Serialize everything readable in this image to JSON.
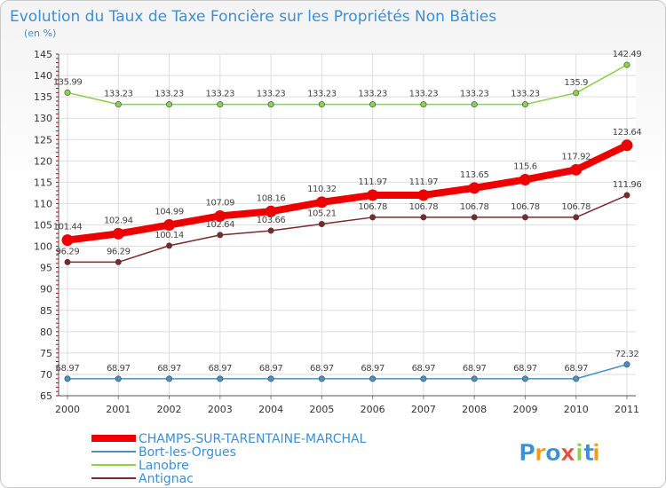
{
  "chart_data": {
    "type": "line",
    "title": "Evolution du Taux de Taxe Foncière sur les Propriétés Non Bâties",
    "subtitle": "(en %)",
    "xlabel": "",
    "ylabel": "",
    "x": [
      "2000",
      "2001",
      "2002",
      "2003",
      "2004",
      "2005",
      "2006",
      "2007",
      "2008",
      "2009",
      "2010",
      "2011"
    ],
    "ylim": [
      65,
      145
    ],
    "yticks": [
      65,
      70,
      75,
      80,
      85,
      90,
      95,
      100,
      105,
      110,
      115,
      120,
      125,
      130,
      135,
      140,
      145
    ],
    "grid": true,
    "legend_position": "bottom-left",
    "series": [
      {
        "name": "Lanobre",
        "color": "#8cd14a",
        "values": [
          135.99,
          133.23,
          133.23,
          133.23,
          133.23,
          133.23,
          133.23,
          133.23,
          133.23,
          133.23,
          135.9,
          142.49
        ],
        "labels": [
          "135.99",
          "133.23",
          "133.23",
          "133.23",
          "133.23",
          "133.23",
          "133.23",
          "133.23",
          "133.23",
          "133.23",
          "135.9",
          "142.49"
        ]
      },
      {
        "name": "CHAMPS-SUR-TARENTAINE-MARCHAL",
        "color": "#ee0000",
        "values": [
          101.44,
          102.94,
          104.99,
          107.09,
          108.16,
          110.32,
          111.97,
          111.97,
          113.65,
          115.6,
          117.92,
          123.64
        ],
        "labels": [
          "101.44",
          "102.94",
          "104.99",
          "107.09",
          "108.16",
          "110.32",
          "111.97",
          "111.97",
          "113.65",
          "115.6",
          "117.92",
          "123.64"
        ]
      },
      {
        "name": "Antignac",
        "color": "#7a2a2a",
        "values": [
          96.29,
          96.29,
          100.14,
          102.64,
          103.66,
          105.21,
          106.78,
          106.78,
          106.78,
          106.78,
          106.78,
          111.96
        ],
        "labels": [
          "96.29",
          "96.29",
          "100.14",
          "102.64",
          "103.66",
          "105.21",
          "106.78",
          "106.78",
          "106.78",
          "106.78",
          "106.78",
          "111.96"
        ]
      },
      {
        "name": "Bort-les-Orgues",
        "color": "#4a90c8",
        "values": [
          68.97,
          68.97,
          68.97,
          68.97,
          68.97,
          68.97,
          68.97,
          68.97,
          68.97,
          68.97,
          68.97,
          72.32
        ],
        "labels": [
          "68.97",
          "68.97",
          "68.97",
          "68.97",
          "68.97",
          "68.97",
          "68.97",
          "68.97",
          "68.97",
          "68.97",
          "68.97",
          "72.32"
        ]
      }
    ],
    "legend": [
      {
        "name": "CHAMPS-SUR-TARENTAINE-MARCHAL",
        "color": "#ee0000"
      },
      {
        "name": "Bort-les-Orgues",
        "color": "#4a90c8"
      },
      {
        "name": "Lanobre",
        "color": "#8cd14a"
      },
      {
        "name": "Antignac",
        "color": "#7a2a2a"
      }
    ]
  },
  "logo": {
    "letters": [
      "P",
      "r",
      "o",
      "x",
      "i",
      "t",
      "i"
    ],
    "colors": [
      "#3a8fd6",
      "#f39c12",
      "#3a8fd6",
      "#e74c3c",
      "#8cd14a",
      "#3a8fd6",
      "#f39c12"
    ]
  }
}
